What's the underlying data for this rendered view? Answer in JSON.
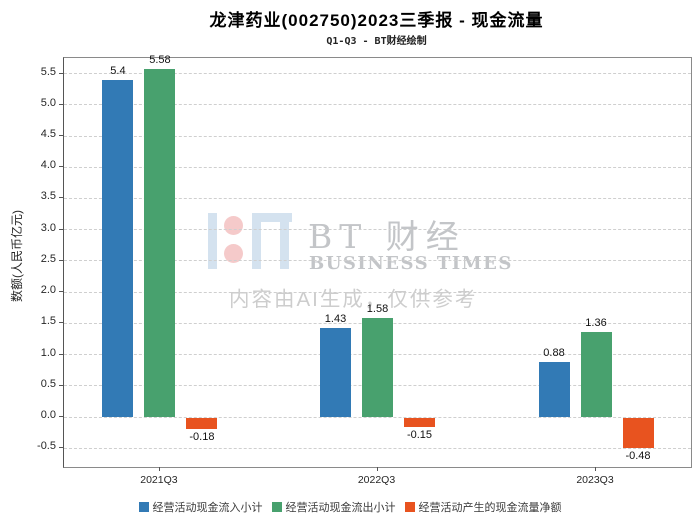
{
  "header": {
    "title": "龙津药业(002750)2023三季报 - 现金流量",
    "subtitle": "Q1-Q3 - BT财经绘制"
  },
  "watermark": {
    "logo": "bt-businesstimes-logo",
    "brand_cn": "BT 财经",
    "brand_en": "BUSINESS TIMES",
    "ai_note": "内容由AI生成，仅供参考"
  },
  "chart_data": {
    "type": "bar",
    "title": "龙津药业(002750)2023三季报 - 现金流量",
    "subtitle": "Q1-Q3 - BT财经绘制",
    "categories": [
      "2021Q3",
      "2022Q3",
      "2023Q3"
    ],
    "series": [
      {
        "name": "经营活动现金流入小计",
        "color": "#327ab5",
        "values": [
          5.4,
          1.43,
          0.88
        ]
      },
      {
        "name": "经营活动现金流出小计",
        "color": "#48a16e",
        "values": [
          5.58,
          1.58,
          1.36
        ]
      },
      {
        "name": "经营活动产生的现金流量净额",
        "color": "#e8531f",
        "values": [
          -0.18,
          -0.15,
          -0.48
        ]
      }
    ],
    "xlabel": "",
    "ylabel": "数额(人民币亿元)",
    "ylim": [
      -0.8,
      5.75
    ],
    "yticks": [
      -0.5,
      0.0,
      0.5,
      1.0,
      1.5,
      2.0,
      2.5,
      3.0,
      3.5,
      4.0,
      4.5,
      5.0,
      5.5
    ],
    "grid": true,
    "grid_style": "dashed",
    "legend_position": "bottom"
  }
}
